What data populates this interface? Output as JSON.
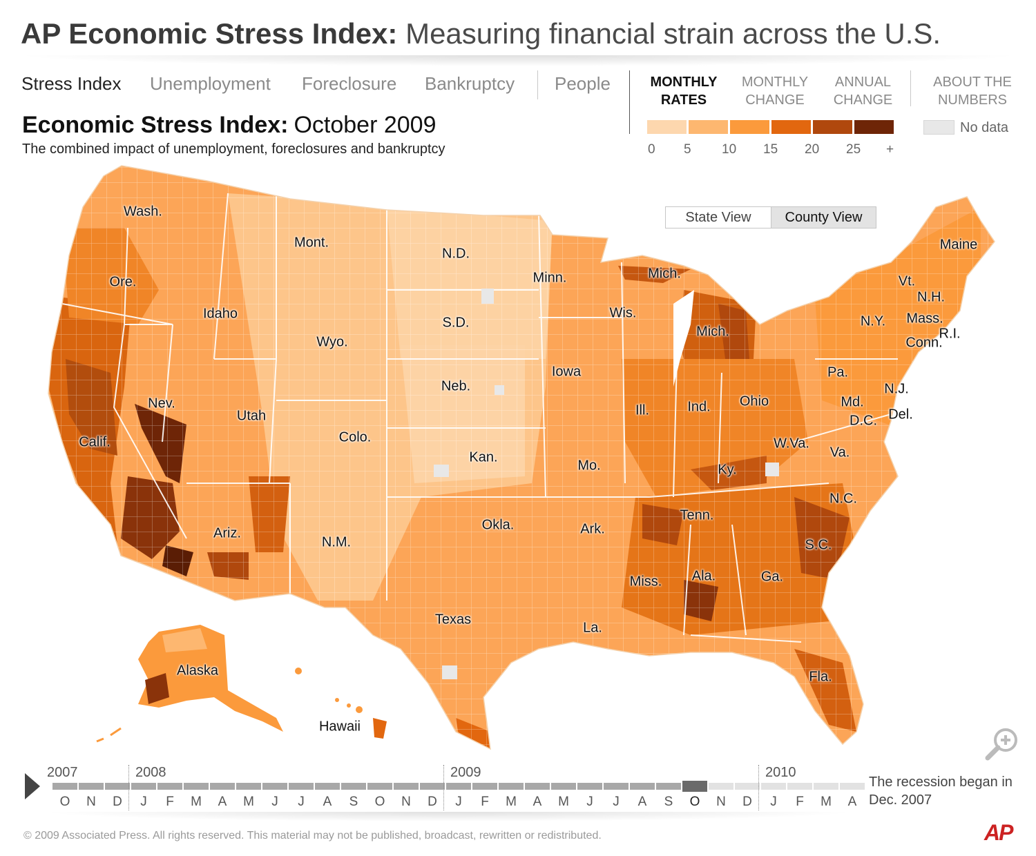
{
  "title": {
    "bold": "AP Economic Stress Index:",
    "light": "Measuring financial strain across the U.S."
  },
  "nav": {
    "items": [
      {
        "label": "Stress Index",
        "active": true
      },
      {
        "label": "Unemployment",
        "active": false
      },
      {
        "label": "Foreclosure",
        "active": false
      },
      {
        "label": "Bankruptcy",
        "active": false
      },
      {
        "label": "People",
        "active": false
      }
    ]
  },
  "modes": [
    {
      "label_1": "MONTHLY",
      "label_2": "RATES",
      "active": true
    },
    {
      "label_1": "MONTHLY",
      "label_2": "CHANGE",
      "active": false
    },
    {
      "label_1": "ANNUAL",
      "label_2": "CHANGE",
      "active": false
    }
  ],
  "about": {
    "label_1": "ABOUT THE",
    "label_2": "NUMBERS"
  },
  "legend": {
    "colors": [
      "#fdd7ae",
      "#fdb770",
      "#fb9a3c",
      "#e2670f",
      "#b0480d",
      "#6e2507"
    ],
    "ticks": [
      "0",
      "5",
      "10",
      "15",
      "20",
      "25",
      "+"
    ],
    "no_data_label": "No data",
    "no_data_color": "#e8e8e8"
  },
  "heading": {
    "bold": "Economic Stress Index:",
    "period": "October 2009",
    "description": "The combined impact of unemployment, foreclosures and bankruptcy"
  },
  "view_toggle": {
    "state": "State View",
    "county": "County View",
    "selected": "county"
  },
  "states": [
    "Wash.",
    "Ore.",
    "Calif.",
    "Nev.",
    "Idaho",
    "Mont.",
    "Wyo.",
    "Utah",
    "Ariz.",
    "Colo.",
    "N.M.",
    "N.D.",
    "S.D.",
    "Neb.",
    "Kan.",
    "Okla.",
    "Texas",
    "Minn.",
    "Iowa",
    "Mo.",
    "Ark.",
    "La.",
    "Wis.",
    "Mich.",
    "Mich.",
    "Ill.",
    "Ind.",
    "Ohio",
    "Ky.",
    "Tenn.",
    "Miss.",
    "Ala.",
    "Ga.",
    "Fla.",
    "S.C.",
    "N.C.",
    "Va.",
    "W.Va.",
    "D.C.",
    "Md.",
    "Del.",
    "N.J.",
    "Pa.",
    "N.Y.",
    "Conn.",
    "R.I.",
    "Mass.",
    "N.H.",
    "Vt.",
    "Maine",
    "Alaska",
    "Hawaii"
  ],
  "timeline": {
    "years": [
      "2007",
      "2008",
      "2009",
      "2010"
    ],
    "months": [
      "O",
      "N",
      "D",
      "J",
      "F",
      "M",
      "A",
      "M",
      "J",
      "J",
      "A",
      "S",
      "O",
      "N",
      "D",
      "J",
      "F",
      "M",
      "A",
      "M",
      "J",
      "J",
      "A",
      "S",
      "O",
      "N",
      "D",
      "J",
      "F",
      "M",
      "A"
    ],
    "current_index": 24,
    "recession_note": "The recession began in Dec. 2007"
  },
  "footer": {
    "copyright": "©  2009 Associated Press. All rights reserved. This material may not be published, broadcast, rewritten or redistributed.",
    "logo": "AP"
  }
}
